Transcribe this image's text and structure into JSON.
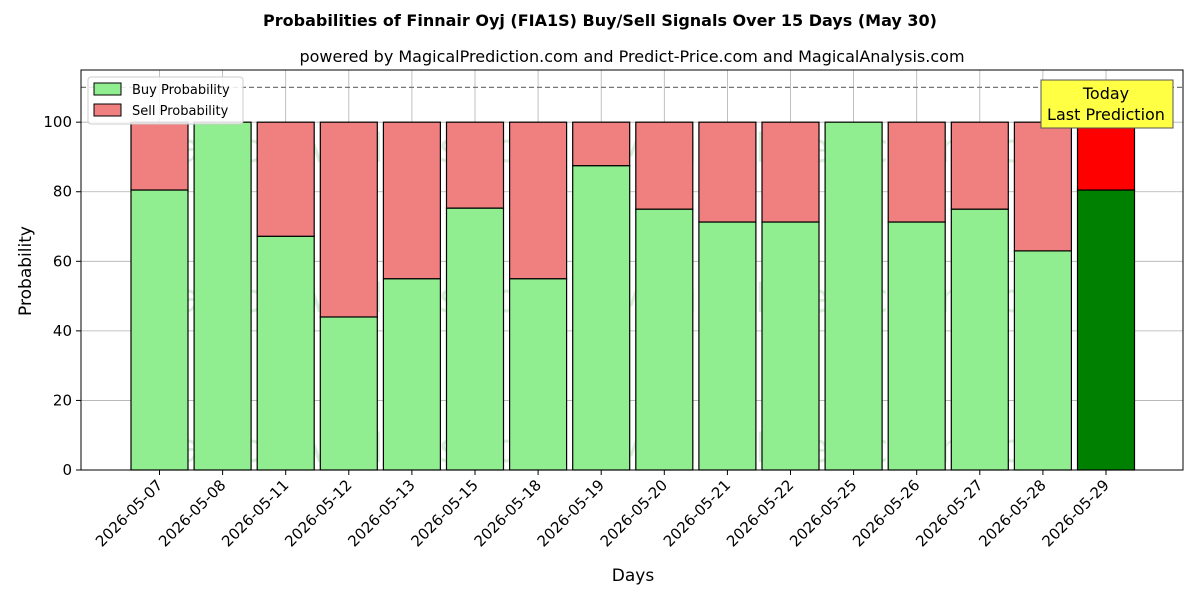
{
  "chart_data": {
    "type": "bar",
    "stacked": true,
    "title": "Probabilities of Finnair Oyj (FIA1S) Buy/Sell Signals Over 15 Days (May 30)",
    "subtitle": "powered by MagicalPrediction.com and Predict-Price.com and MagicalAnalysis.com",
    "xlabel": "Days",
    "ylabel": "Probability",
    "ylim": [
      0,
      115
    ],
    "yticks": [
      0,
      20,
      40,
      60,
      80,
      100
    ],
    "grid": true,
    "legend_position": "top-left",
    "threshold_line": 110,
    "categories": [
      "2026-05-07",
      "2026-05-08",
      "2026-05-11",
      "2026-05-12",
      "2026-05-13",
      "2026-05-15",
      "2026-05-18",
      "2026-05-19",
      "2026-05-20",
      "2026-05-21",
      "2026-05-22",
      "2026-05-25",
      "2026-05-26",
      "2026-05-27",
      "2026-05-28",
      "2026-05-29"
    ],
    "series": [
      {
        "name": "Buy Probability",
        "color": "#90ee90",
        "highlight_color": "#008000",
        "values": [
          80.5,
          100,
          67.2,
          44,
          55,
          75.3,
          55,
          87.5,
          75,
          71.3,
          71.3,
          100,
          71.3,
          75,
          63,
          80.5
        ]
      },
      {
        "name": "Sell Probability",
        "color": "#f08080",
        "highlight_color": "#ff0000",
        "values": [
          19.5,
          0,
          32.8,
          56,
          45,
          24.7,
          45,
          12.5,
          25,
          28.7,
          28.7,
          0,
          28.7,
          25,
          37,
          19.5
        ]
      }
    ],
    "annotation": {
      "text": [
        "Today",
        "Last Prediction"
      ],
      "box_color": "#ffff44",
      "index": 15
    },
    "watermarks": [
      "MagicalAnalysis.com",
      "MagicalPrediction.com"
    ]
  }
}
